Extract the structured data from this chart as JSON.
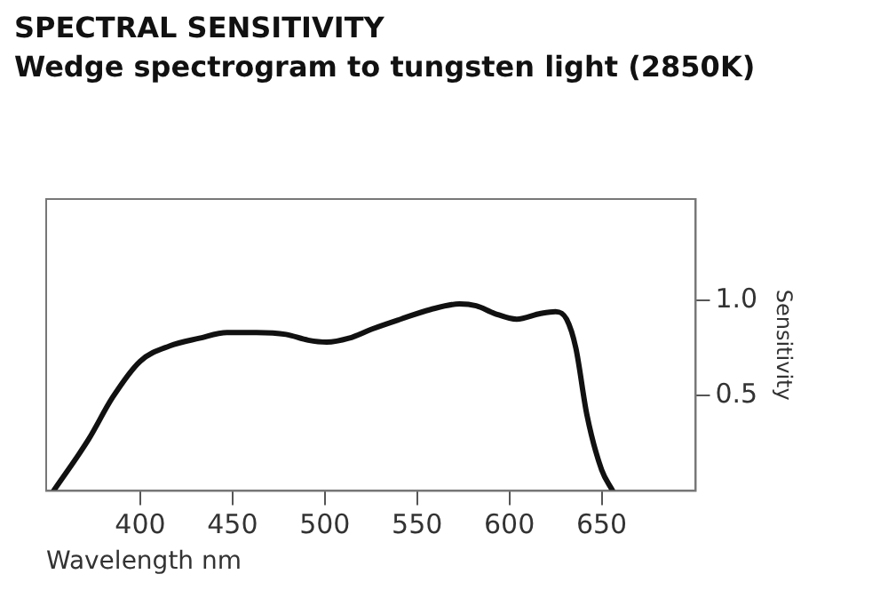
{
  "chart_data": {
    "type": "line",
    "title": "SPECTRAL SENSITIVITY",
    "subtitle": "Wedge spectrogram to tungsten light (2850K)",
    "xlabel": "Wavelength nm",
    "ylabel": "Sensitivity",
    "x": [
      353,
      372,
      385,
      400,
      416,
      432,
      447,
      463,
      479,
      491,
      501,
      513,
      526,
      541,
      557,
      573,
      582,
      592,
      604,
      617,
      625,
      631,
      636,
      642,
      650,
      656
    ],
    "series": [
      {
        "color": "#111111",
        "values": [
          0,
          0.27,
          0.49,
          0.68,
          0.76,
          0.8,
          0.83,
          0.83,
          0.82,
          0.79,
          0.78,
          0.8,
          0.85,
          0.9,
          0.95,
          0.98,
          0.97,
          0.93,
          0.9,
          0.93,
          0.94,
          0.9,
          0.75,
          0.4,
          0.11,
          0
        ]
      }
    ],
    "xlim": [
      349,
      701
    ],
    "xticks": [
      400,
      450,
      500,
      550,
      600,
      650
    ],
    "ylim": [
      0,
      1.53
    ],
    "yticks": [
      0.5,
      {
        "value": 1,
        "label": "1.0"
      }
    ],
    "grid": false,
    "legend": false,
    "marker": "none",
    "line_style": "solid"
  }
}
